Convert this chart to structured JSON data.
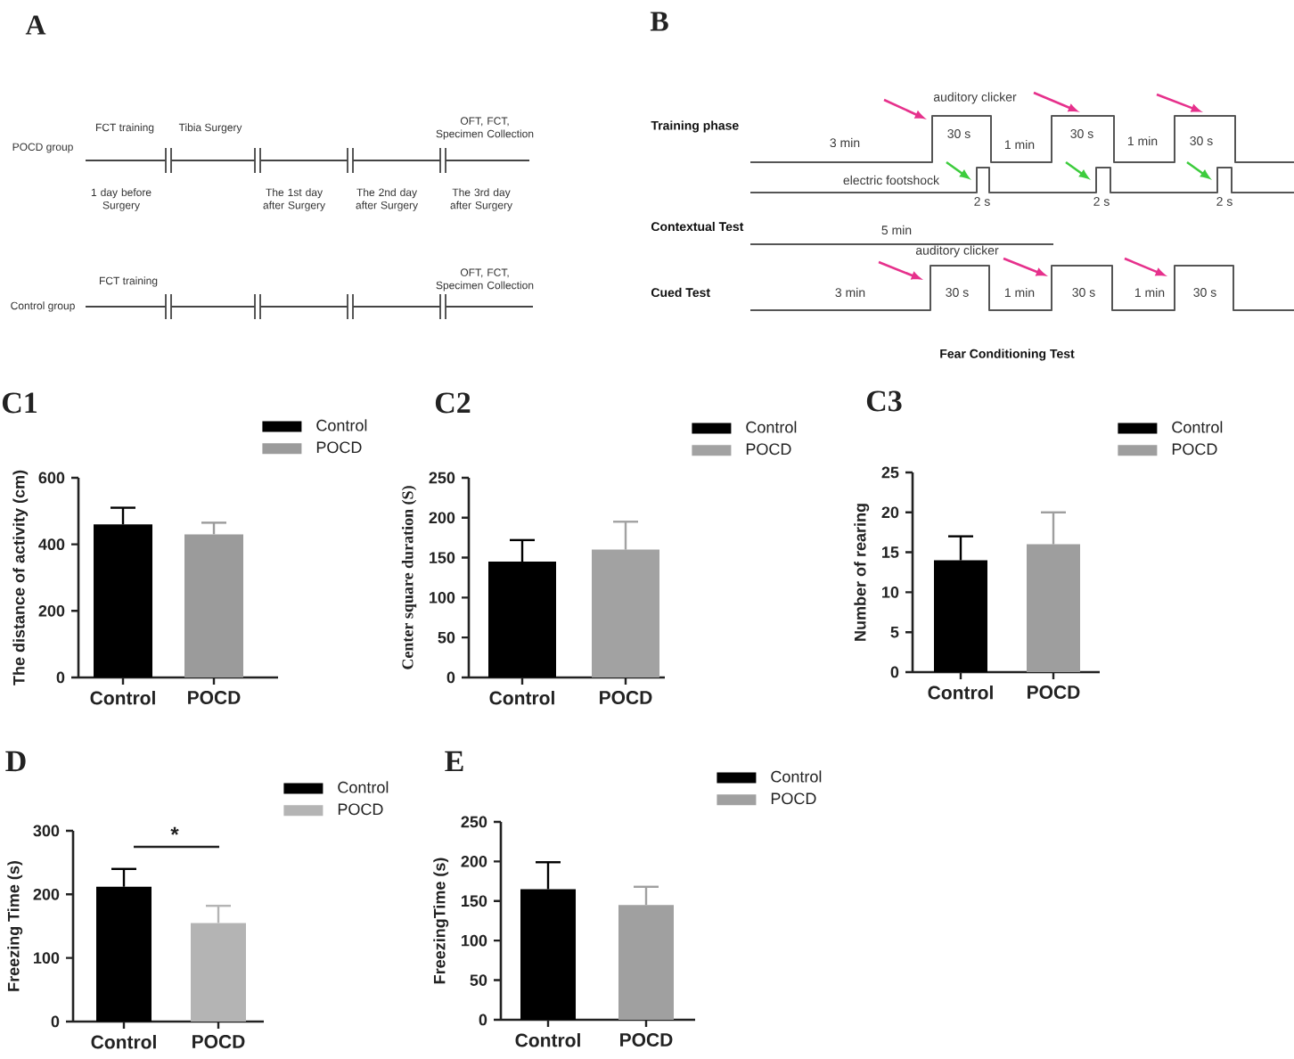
{
  "chart_data": [
    {
      "type": "other",
      "title": "A",
      "annotations": [
        "POCD group",
        "FCT training",
        "Tibia Surgery",
        "OFT, FCT, Specimen Collection",
        "1 day before Surgery",
        "The 1st day after Surgery",
        "The 2nd day after Surgery",
        "The 3rd day after Surgery",
        "Control group",
        "FCT training",
        "OFT, FCT, Specimen Collection"
      ]
    },
    {
      "type": "other",
      "title": "B",
      "annotations": [
        "Training phase",
        "auditory clicker",
        "3 min",
        "30 s",
        "1 min",
        "30 s",
        "1 min",
        "30 s",
        "electric footshock",
        "2 s",
        "2 s",
        "2 s",
        "Contextual Test",
        "5 min",
        "Cued Test",
        "auditory clicker",
        "3 min",
        "30 s",
        "1 min",
        "30 s",
        "1 min",
        "30 s",
        "Fear Conditioning Test"
      ]
    },
    {
      "type": "bar",
      "title": "C1",
      "ylabel": "The distance of activity (cm)",
      "categories": [
        "Control",
        "POCD"
      ],
      "series": [
        {
          "name": "Control",
          "color": "#000000",
          "values": [
            460,
            null
          ],
          "errors": [
            [
              460,
              510
            ],
            null
          ]
        },
        {
          "name": "POCD",
          "color": "#9b9b9b",
          "values": [
            null,
            430
          ],
          "errors": [
            null,
            [
              430,
              465
            ]
          ]
        }
      ],
      "ylim": [
        0,
        600
      ],
      "yticks": [
        0,
        200,
        400,
        600
      ],
      "legend": "top right"
    },
    {
      "type": "bar",
      "title": "C2",
      "ylabel": "Center square duration (S)",
      "categories": [
        "Control",
        "POCD"
      ],
      "series": [
        {
          "name": "Control",
          "color": "#000000",
          "values": [
            145,
            null
          ],
          "errors": [
            [
              145,
              172
            ],
            null
          ]
        },
        {
          "name": "POCD",
          "color": "#a2a2a2",
          "values": [
            null,
            160
          ],
          "errors": [
            null,
            [
              160,
              195
            ]
          ]
        }
      ],
      "ylim": [
        0,
        250
      ],
      "yticks": [
        0,
        50,
        100,
        150,
        200,
        250
      ],
      "legend": "top right"
    },
    {
      "type": "bar",
      "title": "C3",
      "ylabel": "Number of rearing",
      "categories": [
        "Control",
        "POCD"
      ],
      "series": [
        {
          "name": "Control",
          "color": "#000000",
          "values": [
            14,
            null
          ],
          "errors": [
            [
              14,
              17
            ],
            null
          ]
        },
        {
          "name": "POCD",
          "color": "#9e9e9e",
          "values": [
            null,
            16
          ],
          "errors": [
            null,
            [
              16,
              20
            ]
          ]
        }
      ],
      "ylim": [
        0,
        25
      ],
      "yticks": [
        0,
        5,
        10,
        15,
        20,
        25
      ],
      "legend": "top right"
    },
    {
      "type": "bar",
      "title": "D",
      "ylabel": "Freezing Time (s)",
      "categories": [
        "Control",
        "POCD"
      ],
      "series": [
        {
          "name": "Control",
          "color": "#000000",
          "values": [
            212,
            null
          ],
          "errors": [
            [
              212,
              240
            ],
            null
          ]
        },
        {
          "name": "POCD",
          "color": "#b4b4b4",
          "values": [
            null,
            155
          ],
          "errors": [
            null,
            [
              155,
              182
            ]
          ]
        }
      ],
      "ylim": [
        0,
        300
      ],
      "yticks": [
        0,
        100,
        200,
        300
      ],
      "legend": "top right",
      "annotations": [
        "*"
      ]
    },
    {
      "type": "bar",
      "title": "E",
      "ylabel": "FreezingTime (s)",
      "categories": [
        "Control",
        "POCD"
      ],
      "series": [
        {
          "name": "Control",
          "color": "#000000",
          "values": [
            165,
            null
          ],
          "errors": [
            [
              165,
              199
            ],
            null
          ]
        },
        {
          "name": "POCD",
          "color": "#a0a0a0",
          "values": [
            null,
            145
          ],
          "errors": [
            null,
            [
              145,
              168
            ]
          ]
        }
      ],
      "ylim": [
        0,
        250
      ],
      "yticks": [
        0,
        50,
        100,
        150,
        200,
        250
      ],
      "legend": "top right"
    }
  ]
}
